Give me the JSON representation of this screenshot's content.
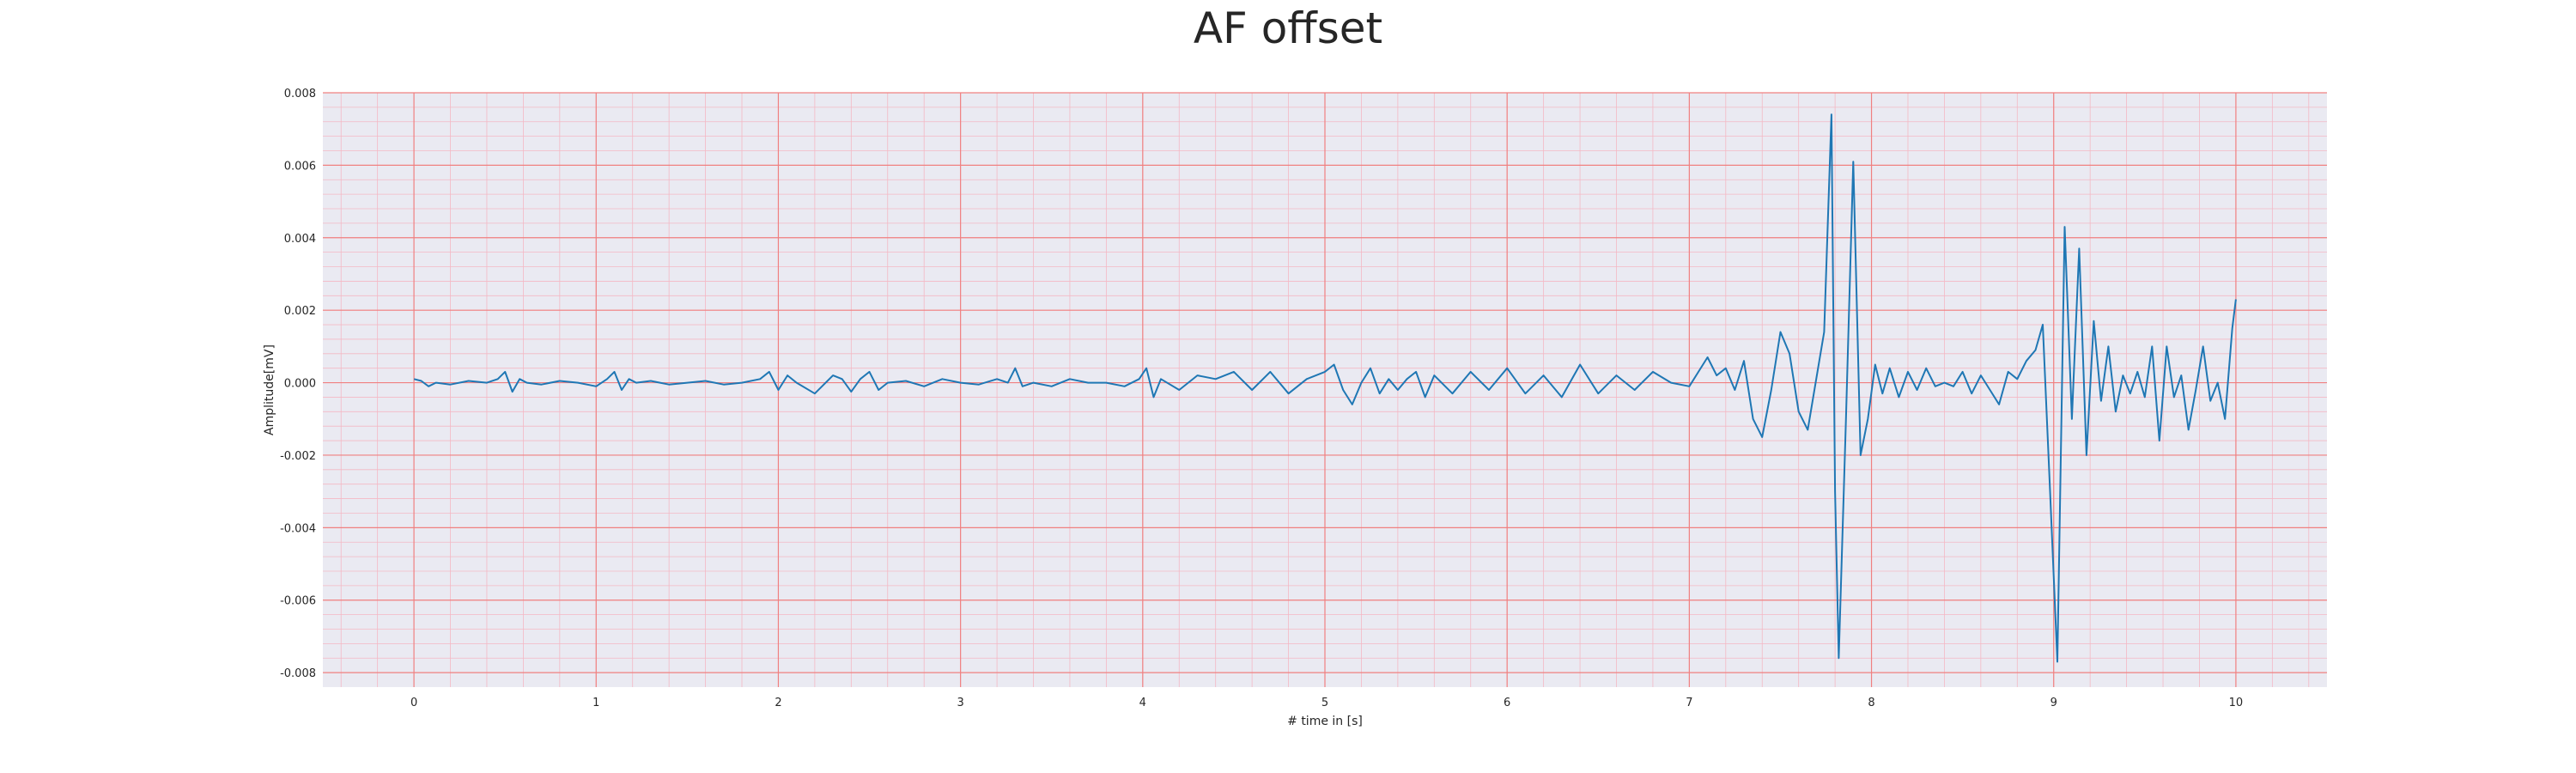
{
  "chart_data": {
    "type": "line",
    "title": "AF offset",
    "xlabel": "# time in [s]",
    "ylabel": "Amplitude[mV]",
    "xlim": [
      -0.5,
      10.5
    ],
    "ylim": [
      -0.0084,
      0.008
    ],
    "x_ticks": [
      0,
      1,
      2,
      3,
      4,
      5,
      6,
      7,
      8,
      9,
      10
    ],
    "x_tick_labels": [
      "0",
      "1",
      "2",
      "3",
      "4",
      "5",
      "6",
      "7",
      "8",
      "9",
      "10"
    ],
    "y_ticks": [
      0.008,
      0.006,
      0.004,
      0.002,
      0.0,
      -0.002,
      -0.004,
      -0.006,
      -0.008
    ],
    "y_tick_labels": [
      "0.008",
      "0.006",
      "0.004",
      "0.002",
      "0.000",
      "-0.002",
      "-0.004",
      "-0.006",
      "-0.008"
    ],
    "grid": true,
    "minor_grid": true,
    "legend": "none",
    "colors": {
      "background": "#eaeaf2",
      "major_grid": "#f08080",
      "minor_grid": "#f4b8c4",
      "line": "#1f77b4"
    },
    "series": [
      {
        "x": [
          0,
          0.04,
          0.08,
          0.12,
          0.2,
          0.3,
          0.4,
          0.46,
          0.5,
          0.54,
          0.58,
          0.62,
          0.7,
          0.8,
          0.9,
          1.0,
          1.06,
          1.1,
          1.14,
          1.18,
          1.22,
          1.3,
          1.4,
          1.5,
          1.6,
          1.7,
          1.8,
          1.9,
          1.95,
          2.0,
          2.05,
          2.1,
          2.2,
          2.3,
          2.35,
          2.4,
          2.45,
          2.5,
          2.55,
          2.6,
          2.7,
          2.8,
          2.9,
          3.0,
          3.1,
          3.2,
          3.26,
          3.3,
          3.34,
          3.4,
          3.5,
          3.6,
          3.7,
          3.8,
          3.9,
          3.98,
          4.02,
          4.06,
          4.1,
          4.2,
          4.3,
          4.4,
          4.5,
          4.6,
          4.7,
          4.8,
          4.9,
          5.0,
          5.05,
          5.1,
          5.15,
          5.2,
          5.25,
          5.3,
          5.35,
          5.4,
          5.45,
          5.5,
          5.55,
          5.6,
          5.7,
          5.8,
          5.9,
          6.0,
          6.1,
          6.2,
          6.3,
          6.4,
          6.5,
          6.6,
          6.7,
          6.8,
          6.9,
          7.0,
          7.05,
          7.1,
          7.15,
          7.2,
          7.25,
          7.3,
          7.35,
          7.4,
          7.45,
          7.5,
          7.55,
          7.6,
          7.65,
          7.7,
          7.74,
          7.78,
          7.8,
          7.82,
          7.86,
          7.9,
          7.94,
          7.98,
          8.02,
          8.06,
          8.1,
          8.15,
          8.2,
          8.25,
          8.3,
          8.35,
          8.4,
          8.45,
          8.5,
          8.55,
          8.6,
          8.65,
          8.7,
          8.75,
          8.8,
          8.85,
          8.9,
          8.94,
          8.98,
          9.02,
          9.06,
          9.1,
          9.14,
          9.18,
          9.22,
          9.26,
          9.3,
          9.34,
          9.38,
          9.42,
          9.46,
          9.5,
          9.54,
          9.58,
          9.62,
          9.66,
          9.7,
          9.74,
          9.78,
          9.82,
          9.86,
          9.9,
          9.94,
          9.98,
          10.0
        ],
        "values": [
          0.0001,
          5e-05,
          -0.0001,
          0.0,
          -5e-05,
          5e-05,
          0.0,
          0.0001,
          0.0003,
          -0.00025,
          0.0001,
          0.0,
          -5e-05,
          5e-05,
          0.0,
          -0.0001,
          0.0001,
          0.0003,
          -0.0002,
          0.0001,
          0.0,
          5e-05,
          -5e-05,
          0.0,
          5e-05,
          -5e-05,
          0.0,
          0.0001,
          0.0003,
          -0.0002,
          0.0002,
          0.0,
          -0.0003,
          0.0002,
          0.0001,
          -0.00025,
          0.0001,
          0.0003,
          -0.0002,
          0.0,
          5e-05,
          -0.0001,
          0.0001,
          0.0,
          -5e-05,
          0.0001,
          0.0,
          0.0004,
          -0.0001,
          0.0,
          -0.0001,
          0.0001,
          0.0,
          0.0,
          -0.0001,
          0.0001,
          0.0004,
          -0.0004,
          0.0001,
          -0.0002,
          0.0002,
          0.0001,
          0.0003,
          -0.0002,
          0.0003,
          -0.0003,
          0.0001,
          0.0003,
          0.0005,
          -0.0002,
          -0.0006,
          0.0,
          0.0004,
          -0.0003,
          0.0001,
          -0.0002,
          0.0001,
          0.0003,
          -0.0004,
          0.0002,
          -0.0003,
          0.0003,
          -0.0002,
          0.0004,
          -0.0003,
          0.0002,
          -0.0004,
          0.0005,
          -0.0003,
          0.0002,
          -0.0002,
          0.0003,
          0.0,
          -0.0001,
          0.0003,
          0.0007,
          0.0002,
          0.0004,
          -0.0002,
          0.0006,
          -0.001,
          -0.0015,
          -0.0002,
          0.0014,
          0.0008,
          -0.0008,
          -0.0013,
          0.0002,
          0.0014,
          0.0074,
          -0.003,
          -0.0076,
          -0.001,
          0.0061,
          -0.002,
          -0.001,
          0.0005,
          -0.0003,
          0.0004,
          -0.0004,
          0.0003,
          -0.0002,
          0.0004,
          -0.0001,
          0.0,
          -0.0001,
          0.0003,
          -0.0003,
          0.0002,
          -0.0002,
          -0.0006,
          0.0003,
          0.0001,
          0.0006,
          0.0009,
          0.0016,
          -0.003,
          -0.0077,
          0.0043,
          -0.001,
          0.0037,
          -0.002,
          0.0017,
          -0.0005,
          0.001,
          -0.0008,
          0.0002,
          -0.0003,
          0.0003,
          -0.0004,
          0.001,
          -0.0016,
          0.001,
          -0.0004,
          0.0002,
          -0.0013,
          -0.0002,
          0.001,
          -0.0005,
          0.0,
          -0.001,
          0.0015,
          0.0023
        ]
      }
    ]
  }
}
